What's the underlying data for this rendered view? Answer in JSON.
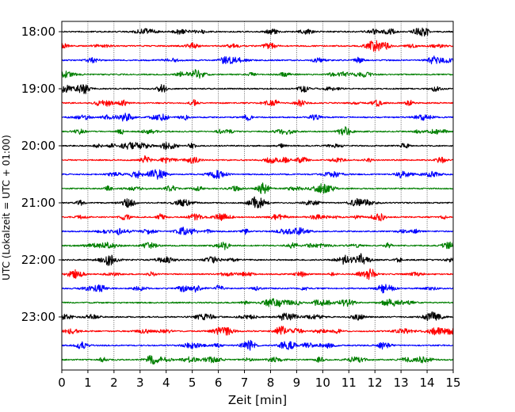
{
  "chart_data": {
    "type": "line",
    "title": "",
    "xlabel": "Zeit  [min]",
    "ylabel": "UTC (Lokalzeit = UTC + 01:00)",
    "xlim": [
      0,
      15
    ],
    "x_ticks": [
      0,
      1,
      2,
      3,
      4,
      5,
      6,
      7,
      8,
      9,
      10,
      11,
      12,
      13,
      14,
      15
    ],
    "x_tick_labels": [
      "0",
      "1",
      "2",
      "3",
      "4",
      "5",
      "6",
      "7",
      "8",
      "9",
      "10",
      "11",
      "12",
      "13",
      "14",
      "15"
    ],
    "y_tick_labels": [
      "18:00",
      "19:00",
      "20:00",
      "21:00",
      "22:00",
      "23:00"
    ],
    "grid": "vertical dotted lines at each minute",
    "legend": "none",
    "trace_colors": [
      "#000000",
      "#ff0000",
      "#0000ff",
      "#007f00"
    ],
    "traces_per_hour": 4,
    "trace_interval_min": 15,
    "traces": [
      {
        "start": "18:00",
        "color": "#000000"
      },
      {
        "start": "18:15",
        "color": "#ff0000"
      },
      {
        "start": "18:30",
        "color": "#0000ff"
      },
      {
        "start": "18:45",
        "color": "#007f00"
      },
      {
        "start": "19:00",
        "color": "#000000"
      },
      {
        "start": "19:15",
        "color": "#ff0000"
      },
      {
        "start": "19:30",
        "color": "#0000ff"
      },
      {
        "start": "19:45",
        "color": "#007f00"
      },
      {
        "start": "20:00",
        "color": "#000000"
      },
      {
        "start": "20:15",
        "color": "#ff0000"
      },
      {
        "start": "20:30",
        "color": "#0000ff"
      },
      {
        "start": "20:45",
        "color": "#007f00"
      },
      {
        "start": "21:00",
        "color": "#000000"
      },
      {
        "start": "21:15",
        "color": "#ff0000"
      },
      {
        "start": "21:30",
        "color": "#0000ff"
      },
      {
        "start": "21:45",
        "color": "#007f00"
      },
      {
        "start": "22:00",
        "color": "#000000"
      },
      {
        "start": "22:15",
        "color": "#ff0000"
      },
      {
        "start": "22:30",
        "color": "#0000ff"
      },
      {
        "start": "22:45",
        "color": "#007f00"
      },
      {
        "start": "23:00",
        "color": "#000000"
      },
      {
        "start": "23:15",
        "color": "#ff0000"
      },
      {
        "start": "23:30",
        "color": "#0000ff"
      },
      {
        "start": "23:45",
        "color": "#007f00"
      }
    ]
  }
}
